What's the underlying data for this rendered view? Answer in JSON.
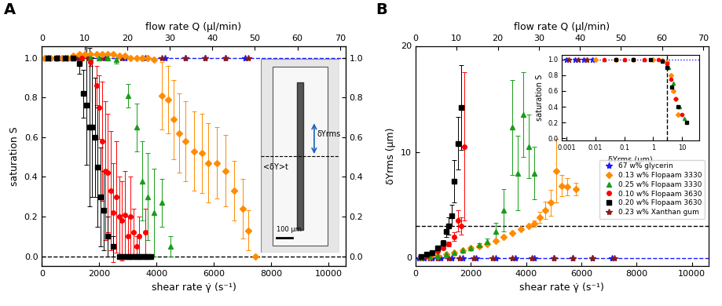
{
  "chart_data": [
    {
      "type": "scatter",
      "panel": "A",
      "x_label": "shear rate γ̇ (s⁻¹)",
      "y_label": "saturation S",
      "x2_label": "flow rate Q (µl/min)",
      "xlim": [
        0,
        10600
      ],
      "xticks": [
        0,
        2000,
        4000,
        6000,
        8000,
        10000
      ],
      "ylim": [
        -0.05,
        1.06
      ],
      "yticks": [
        {
          "value": 0,
          "label": "0.0"
        },
        0.2,
        0.4,
        0.6,
        0.8,
        {
          "value": 1,
          "label": "1.0"
        }
      ],
      "y2lim": [
        -0.05,
        1.06
      ],
      "y2ticks": [
        {
          "value": 0,
          "label": "0.0"
        },
        0.2,
        0.4,
        0.6,
        0.8,
        {
          "value": 1,
          "label": "1.0"
        }
      ],
      "x2lim": [
        0,
        71.3
      ],
      "x2ticks": [
        0,
        10,
        20,
        30,
        40,
        50,
        60,
        70
      ],
      "hlines": [
        {
          "value": 1.0,
          "color": "#1a1aff",
          "line_style": "dashed"
        },
        {
          "value": 0.0,
          "color": "#000000",
          "line_style": "dashed"
        }
      ],
      "image_labels": [
        "δYrms",
        "<δY>t",
        "100 µm"
      ],
      "series": [
        {
          "color": "#1a1aff",
          "marker": "star",
          "x": [
            100,
            300,
            600,
            900,
            1300,
            1700,
            2200,
            2900,
            3600,
            4300,
            5000,
            5700,
            6400,
            7100
          ],
          "values": [
            1,
            1,
            1,
            1,
            1,
            1,
            1,
            1,
            1,
            1,
            1,
            1,
            1,
            1
          ]
        },
        {
          "color": "#ff8c00",
          "marker": "diamond",
          "x": [
            100,
            300,
            500,
            700,
            900,
            1100,
            1300,
            1500,
            1700,
            1900,
            2100,
            2300,
            2500,
            2700,
            2900,
            3100,
            3300,
            3500,
            3700,
            3900,
            4200,
            4400,
            4600,
            4800,
            5000,
            5300,
            5600,
            5800,
            6100,
            6400,
            6700,
            7000,
            7200,
            7450
          ],
          "values": [
            1,
            1,
            1,
            1,
            1,
            1.01,
            1.02,
            1.02,
            1.02,
            1.02,
            1.02,
            1.02,
            1.02,
            1.01,
            1.01,
            1,
            1,
            1,
            1,
            0.99,
            0.81,
            0.79,
            0.69,
            0.62,
            0.58,
            0.53,
            0.52,
            0.47,
            0.47,
            0.43,
            0.33,
            0.24,
            0.13,
            0.0
          ],
          "errors": [
            0,
            0,
            0,
            0,
            0,
            0,
            0,
            0,
            0,
            0,
            0,
            0,
            0,
            0,
            0,
            0,
            0,
            0,
            0,
            0,
            0.17,
            0.17,
            0.2,
            0.2,
            0.2,
            0.2,
            0.2,
            0.2,
            0.18,
            0.18,
            0.15,
            0.15,
            0.1,
            0
          ]
        },
        {
          "color": "#1a9c1a",
          "marker": "triangle",
          "x": [
            200,
            500,
            800,
            1100,
            1400,
            1700,
            2000,
            2300,
            2600,
            3000,
            3300,
            3500,
            3700,
            3900,
            4200,
            4500
          ],
          "values": [
            1,
            1,
            1,
            1,
            1,
            1,
            1,
            1,
            0.99,
            0.81,
            0.65,
            0.38,
            0.3,
            0.22,
            0.27,
            0.05
          ],
          "errors": [
            0,
            0,
            0,
            0,
            0,
            0,
            0,
            0,
            0.02,
            0.06,
            0.12,
            0.2,
            0.22,
            0.22,
            0.12,
            0.05
          ]
        },
        {
          "color": "#ff0000",
          "marker": "circle",
          "x": [
            200,
            500,
            800,
            1100,
            1400,
            1700,
            1900,
            2000,
            2100,
            2200,
            2300,
            2400,
            2500,
            2600,
            2700,
            2800,
            2900,
            3000,
            3100,
            3200,
            3300,
            3400,
            3500,
            3600,
            3700
          ],
          "values": [
            1,
            1,
            1,
            1,
            1,
            0.98,
            0.86,
            0.75,
            0.58,
            0.43,
            0.42,
            0.33,
            0.22,
            0.3,
            0.2,
            0.18,
            0.21,
            0.1,
            0.2,
            0.12,
            0.05,
            0.1,
            0.0,
            0.12,
            0.0
          ],
          "errors": [
            0,
            0,
            0,
            0,
            0,
            0.02,
            0.1,
            0.16,
            0.3,
            0.35,
            0.3,
            0.3,
            0.25,
            0.28,
            0.2,
            0.2,
            0.22,
            0.1,
            0.2,
            0.12,
            0.05,
            0.1,
            0,
            0.12,
            0
          ]
        },
        {
          "color": "#000000",
          "marker": "square",
          "x": [
            200,
            500,
            800,
            1100,
            1300,
            1450,
            1550,
            1650,
            1750,
            1850,
            1950,
            2050,
            2150,
            2300,
            2500,
            2700,
            2800,
            2900,
            3000,
            3100,
            3200,
            3300,
            3400,
            3500,
            3600,
            3700,
            3800
          ],
          "values": [
            1,
            1,
            1,
            1,
            0.97,
            0.82,
            0.76,
            0.65,
            0.65,
            0.6,
            0.45,
            0.3,
            0.23,
            0.1,
            0.05,
            0,
            0,
            0,
            0,
            0,
            0,
            0,
            0,
            0,
            0,
            0,
            0
          ],
          "errors": [
            0,
            0,
            0,
            0,
            0.05,
            0.12,
            0.3,
            0.4,
            0.35,
            0.3,
            0.3,
            0.25,
            0.2,
            0.1,
            0.05,
            0,
            0,
            0,
            0,
            0,
            0,
            0,
            0,
            0,
            0,
            0,
            0
          ]
        },
        {
          "color": "#8b1a1a",
          "marker": "star",
          "x": [
            200,
            500,
            800,
            1200,
            1600,
            2100,
            2800,
            3500,
            4200,
            5000,
            5700,
            6400,
            7200
          ],
          "values": [
            1,
            1,
            1,
            1,
            1,
            1,
            1,
            1,
            1,
            1,
            1,
            1,
            1
          ]
        }
      ]
    },
    {
      "type": "scatter",
      "panel": "B",
      "legend": "lower right",
      "x_label": "shear rate γ̇ (s⁻¹)",
      "y_label": "δYrms (µm)",
      "x2_label": "flow rate Q (µl/min)",
      "xlim": [
        0,
        10600
      ],
      "xticks": [
        0,
        2000,
        4000,
        6000,
        8000,
        10000
      ],
      "ylim": [
        -0.8,
        20
      ],
      "yticks": [
        0,
        10,
        20
      ],
      "x2lim": [
        0,
        71.3
      ],
      "x2ticks": [
        0,
        10,
        20,
        30,
        40,
        50,
        60,
        70
      ],
      "hlines": [
        {
          "value": 0.0,
          "color": "#1a1aff",
          "line_style": "dashed"
        },
        {
          "value": 3.0,
          "color": "#000000",
          "line_style": "dashed"
        }
      ],
      "series": [
        {
          "name": "67 w% glycerin",
          "color": "#1a1aff",
          "marker": "star",
          "x": [
            100,
            300,
            600,
            900,
            1300,
            1700,
            2200,
            2900,
            3600,
            4300,
            5000,
            5700,
            6400,
            7100
          ],
          "values": [
            0,
            0,
            0,
            0,
            0,
            0,
            0,
            0,
            0,
            0,
            0,
            0,
            0,
            0
          ]
        },
        {
          "name": "0.13 w% Flopaam 3330",
          "color": "#ff8c00",
          "marker": "diamond",
          "x": [
            200,
            500,
            800,
            1100,
            1400,
            1700,
            2000,
            2300,
            2600,
            2900,
            3200,
            3500,
            3800,
            4100,
            4300,
            4500,
            4700,
            4900,
            5100,
            5300,
            5500,
            5800
          ],
          "values": [
            0.05,
            0.1,
            0.2,
            0.35,
            0.5,
            0.7,
            0.9,
            1.1,
            1.3,
            1.6,
            2.0,
            2.3,
            2.7,
            3.0,
            3.2,
            3.8,
            4.5,
            5.2,
            8.2,
            6.8,
            6.7,
            6.5
          ],
          "errors": [
            0,
            0,
            0,
            0,
            0,
            0,
            0,
            0,
            0,
            0,
            0,
            0,
            0,
            0,
            0.3,
            0.5,
            0.8,
            1.2,
            3.0,
            1.0,
            0.8,
            0.6
          ]
        },
        {
          "name": "0.25 w% Flopaam 3330",
          "color": "#1a9c1a",
          "marker": "triangle",
          "x": [
            200,
            500,
            800,
            1100,
            1400,
            1700,
            2000,
            2300,
            2600,
            2900,
            3200,
            3500,
            3700,
            3900,
            4100,
            4300
          ],
          "values": [
            0.05,
            0.1,
            0.2,
            0.3,
            0.5,
            0.7,
            0.9,
            1.2,
            1.5,
            2.5,
            4.5,
            12.3,
            8.0,
            13.5,
            10.5,
            8.0
          ],
          "errors": [
            0,
            0,
            0,
            0,
            0,
            0,
            0,
            0.2,
            0.3,
            0.8,
            2.0,
            4.5,
            3.5,
            4.0,
            3.0,
            2.5
          ]
        },
        {
          "name": "0.10 w% Flopaam 3630",
          "color": "#ff0000",
          "marker": "circle",
          "x": [
            200,
            400,
            600,
            800,
            1000,
            1200,
            1400,
            1550,
            1650,
            1750
          ],
          "values": [
            0.1,
            0.2,
            0.4,
            0.6,
            0.9,
            1.3,
            2.0,
            3.5,
            3.0,
            10.5
          ],
          "errors": [
            0,
            0,
            0,
            0,
            0.1,
            0.2,
            0.4,
            1.0,
            0.8,
            7.0
          ]
        },
        {
          "name": "0.20 w% Flopaam 3630",
          "color": "#000000",
          "marker": "square",
          "x": [
            200,
            400,
            600,
            800,
            1000,
            1100,
            1200,
            1300,
            1400,
            1550,
            1650
          ],
          "values": [
            0.1,
            0.3,
            0.5,
            0.9,
            1.4,
            2.5,
            3.0,
            4.0,
            7.2,
            10.8,
            14.2
          ],
          "errors": [
            0,
            0,
            0.1,
            0.2,
            0.3,
            0.5,
            0.8,
            1.0,
            2.0,
            2.5,
            4.0
          ]
        },
        {
          "name": "0.23 w% Xanthan gum",
          "color": "#8b1a1a",
          "marker": "star",
          "x": [
            200,
            500,
            800,
            1200,
            1600,
            2100,
            2800,
            3500,
            4200,
            5000,
            5700,
            6400,
            7200
          ],
          "values": [
            0,
            0,
            0,
            0,
            0,
            0,
            0,
            0,
            0,
            0,
            0,
            0,
            0
          ]
        }
      ]
    },
    {
      "type": "scatter",
      "log": "x",
      "x_label": "δYrms (µm)",
      "y_label": "saturation S",
      "xlim": [
        0.0007,
        40
      ],
      "xticks": [
        0.001,
        0.01,
        0.1,
        1,
        10
      ],
      "ylim": [
        -0.03,
        1.06
      ],
      "yticks": [
        {
          "value": 0,
          "label": "0.0"
        },
        0.2,
        0.4,
        0.6,
        0.8,
        {
          "value": 1,
          "label": "1.0"
        }
      ],
      "vlines": [
        {
          "value": 3.0,
          "color": "#000000",
          "line_style": "dashed"
        }
      ],
      "hlines": [
        {
          "value": 1.0,
          "color": "#1a1aff",
          "line_style": "dotted"
        }
      ],
      "series": [
        {
          "color": "#1a1aff",
          "marker": "star",
          "x": [
            0.001,
            0.002,
            0.004,
            0.008
          ],
          "values": [
            1,
            1,
            1,
            1
          ]
        },
        {
          "color": "#ff8c00",
          "marker": "diamond",
          "x": [
            0.01,
            0.05,
            0.2,
            1,
            2,
            3,
            4,
            5,
            6,
            7
          ],
          "values": [
            1,
            1,
            1,
            1,
            0.99,
            0.97,
            0.8,
            0.6,
            0.5,
            0.3
          ]
        },
        {
          "color": "#1a9c1a",
          "marker": "triangle",
          "x": [
            0.005,
            0.02,
            0.1,
            0.5,
            2,
            3.5,
            5,
            8,
            12
          ],
          "values": [
            1,
            1,
            1,
            1,
            0.99,
            0.9,
            0.7,
            0.4,
            0.25
          ]
        },
        {
          "color": "#ff0000",
          "marker": "circle",
          "x": [
            0.02,
            0.1,
            0.5,
            1.5,
            3,
            4,
            6,
            10
          ],
          "values": [
            1,
            1,
            1,
            1,
            0.95,
            0.75,
            0.5,
            0.3
          ]
        },
        {
          "color": "#000000",
          "marker": "square",
          "x": [
            0.05,
            0.2,
            0.8,
            2,
            3,
            4.5,
            7,
            14
          ],
          "values": [
            1,
            1,
            1,
            0.98,
            0.9,
            0.65,
            0.4,
            0.2
          ]
        },
        {
          "color": "#8b1a1a",
          "marker": "star",
          "x": [
            0.0012,
            0.0025,
            0.005
          ],
          "values": [
            1,
            1,
            1
          ]
        }
      ]
    }
  ]
}
